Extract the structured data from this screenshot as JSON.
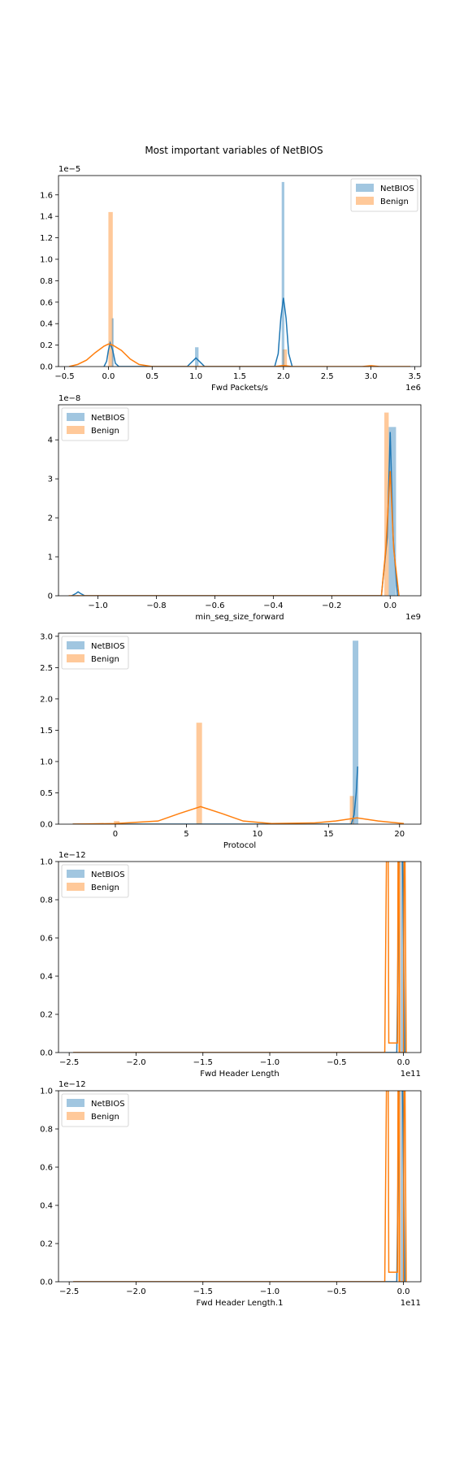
{
  "figure": {
    "suptitle": "Most important variables of NetBIOS"
  },
  "colors": {
    "netbios": "#1f77b4",
    "benign": "#ff7f0e",
    "netbios_bar": "#1f77b4",
    "benign_bar": "#ff7f0e"
  },
  "chart_data": [
    {
      "type": "bar",
      "xlabel": "Fwd Packets/s",
      "x_offset_label": "1e6",
      "y_offset_label": "1e−5",
      "xlim": [
        -0.57,
        3.57
      ],
      "ylim": [
        0,
        1.78
      ],
      "xticks": [
        -0.5,
        0.0,
        0.5,
        1.0,
        1.5,
        2.0,
        2.5,
        3.0,
        3.5
      ],
      "xtick_labels": [
        "−0.5",
        "0.0",
        "0.5",
        "1.0",
        "1.5",
        "2.0",
        "2.5",
        "3.0",
        "3.5"
      ],
      "yticks": [
        0,
        0.2,
        0.4,
        0.6,
        0.8,
        1.0,
        1.2,
        1.4,
        1.6
      ],
      "ytick_labels": [
        "0.0",
        "0.2",
        "0.4",
        "0.6",
        "0.8",
        "1.0",
        "1.2",
        "1.4",
        "1.6"
      ],
      "legend": "upper-right",
      "series": [
        {
          "name": "NetBIOS",
          "bars": [
            [
              0.04,
              0.06,
              0.45
            ],
            [
              0.99,
              1.03,
              0.18
            ],
            [
              1.98,
              2.01,
              1.72
            ]
          ],
          "curve": [
            [
              -0.05,
              0
            ],
            [
              -0.02,
              0.05
            ],
            [
              0.0,
              0.15
            ],
            [
              0.02,
              0.22
            ],
            [
              0.05,
              0.15
            ],
            [
              0.08,
              0.03
            ],
            [
              0.12,
              0
            ],
            [
              0.9,
              0
            ],
            [
              0.95,
              0.04
            ],
            [
              1.0,
              0.08
            ],
            [
              1.05,
              0.04
            ],
            [
              1.1,
              0
            ],
            [
              1.9,
              0
            ],
            [
              1.94,
              0.12
            ],
            [
              1.97,
              0.45
            ],
            [
              2.0,
              0.64
            ],
            [
              2.03,
              0.45
            ],
            [
              2.06,
              0.12
            ],
            [
              2.1,
              0
            ]
          ]
        },
        {
          "name": "Benign",
          "bars": [
            [
              0.0,
              0.05,
              1.44
            ],
            [
              1.99,
              2.04,
              0.16
            ],
            [
              2.99,
              3.01,
              0.01
            ]
          ],
          "curve": [
            [
              -0.45,
              0
            ],
            [
              -0.35,
              0.02
            ],
            [
              -0.25,
              0.06
            ],
            [
              -0.15,
              0.13
            ],
            [
              -0.05,
              0.19
            ],
            [
              0.0,
              0.21
            ],
            [
              0.05,
              0.2
            ],
            [
              0.15,
              0.15
            ],
            [
              0.25,
              0.07
            ],
            [
              0.35,
              0.02
            ],
            [
              0.5,
              0
            ],
            [
              1.9,
              0
            ],
            [
              2.0,
              0.01
            ],
            [
              2.1,
              0
            ],
            [
              2.9,
              0
            ],
            [
              3.0,
              0.008
            ],
            [
              3.1,
              0
            ],
            [
              3.45,
              0
            ]
          ]
        }
      ]
    },
    {
      "type": "bar",
      "xlabel": "min_seg_size_forward",
      "x_offset_label": "1e9",
      "y_offset_label": "1e−8",
      "xlim": [
        -1.135,
        0.105
      ],
      "ylim": [
        0,
        4.9
      ],
      "xticks": [
        -1.0,
        -0.8,
        -0.6,
        -0.4,
        -0.2,
        0.0
      ],
      "xtick_labels": [
        "−1.0",
        "−0.8",
        "−0.6",
        "−0.4",
        "−0.2",
        "0.0"
      ],
      "yticks": [
        0,
        1,
        2,
        3,
        4
      ],
      "ytick_labels": [
        "0",
        "1",
        "2",
        "3",
        "4"
      ],
      "legend": "upper-left",
      "series": [
        {
          "name": "NetBIOS",
          "bars": [
            [
              -0.005,
              0.02,
              4.33
            ],
            [
              -1.072,
              -1.066,
              0.02
            ]
          ],
          "curve": [
            [
              -1.09,
              0
            ],
            [
              -1.075,
              0.06
            ],
            [
              -1.068,
              0.1
            ],
            [
              -1.06,
              0.06
            ],
            [
              -1.045,
              0
            ],
            [
              -0.03,
              0
            ],
            [
              -0.01,
              1.5
            ],
            [
              0.0,
              4.2
            ],
            [
              0.01,
              1.5
            ],
            [
              0.025,
              0
            ]
          ]
        },
        {
          "name": "Benign",
          "bars": [
            [
              -0.02,
              -0.005,
              4.7
            ]
          ],
          "curve": [
            [
              -1.1,
              0
            ],
            [
              -0.03,
              0
            ],
            [
              -0.015,
              1.2
            ],
            [
              0.0,
              3.2
            ],
            [
              0.012,
              1.2
            ],
            [
              0.03,
              0
            ]
          ]
        }
      ]
    },
    {
      "type": "bar",
      "xlabel": "Protocol",
      "x_offset_label": "",
      "y_offset_label": "",
      "xlim": [
        -4.0,
        21.5
      ],
      "ylim": [
        0,
        3.05
      ],
      "xticks": [
        0,
        5,
        10,
        15,
        20
      ],
      "xtick_labels": [
        "0",
        "5",
        "10",
        "15",
        "20"
      ],
      "yticks": [
        0,
        0.5,
        1.0,
        1.5,
        2.0,
        2.5,
        3.0
      ],
      "ytick_labels": [
        "0.0",
        "0.5",
        "1.0",
        "1.5",
        "2.0",
        "2.5",
        "3.0"
      ],
      "legend": "upper-left",
      "series": [
        {
          "name": "NetBIOS",
          "bars": [
            [
              16.7,
              17.1,
              2.93
            ]
          ],
          "curve": [
            [
              -3.0,
              0
            ],
            [
              16.6,
              0
            ],
            [
              16.8,
              0.15
            ],
            [
              16.95,
              0.5
            ],
            [
              17.05,
              0.92
            ]
          ]
        },
        {
          "name": "Benign",
          "bars": [
            [
              5.7,
              6.1,
              1.62
            ],
            [
              -0.1,
              0.3,
              0.05
            ],
            [
              16.5,
              16.8,
              0.45
            ]
          ],
          "curve": [
            [
              -3.0,
              0
            ],
            [
              0,
              0.01
            ],
            [
              3,
              0.05
            ],
            [
              4.5,
              0.17
            ],
            [
              6,
              0.28
            ],
            [
              7.5,
              0.17
            ],
            [
              9,
              0.05
            ],
            [
              11,
              0.01
            ],
            [
              14,
              0.02
            ],
            [
              15.5,
              0.05
            ],
            [
              17,
              0.1
            ],
            [
              18.5,
              0.05
            ],
            [
              20.3,
              0.01
            ]
          ]
        }
      ]
    },
    {
      "type": "bar",
      "xlabel": "Fwd Header Length",
      "x_offset_label": "1e11",
      "y_offset_label": "1e−12",
      "xlim": [
        -2.58,
        0.13
      ],
      "ylim": [
        0,
        1.0
      ],
      "xticks": [
        -2.5,
        -2.0,
        -1.5,
        -1.0,
        -0.5,
        0.0
      ],
      "xtick_labels": [
        "−2.5",
        "−2.0",
        "−1.5",
        "−1.0",
        "−0.5",
        "0.0"
      ],
      "yticks": [
        0,
        0.2,
        0.4,
        0.6,
        0.8,
        1.0
      ],
      "ytick_labels": [
        "0.0",
        "0.2",
        "0.4",
        "0.6",
        "0.8",
        "1.0"
      ],
      "legend": "upper-left",
      "series": [
        {
          "name": "NetBIOS",
          "bars": [
            [
              -0.02,
              0.0,
              1.0
            ]
          ],
          "curve": [
            [
              -2.47,
              0
            ],
            [
              -0.05,
              0
            ],
            [
              -0.03,
              1.2
            ],
            [
              -0.01,
              1.2
            ],
            [
              0.01,
              0
            ]
          ]
        },
        {
          "name": "Benign",
          "bars": [
            [
              -0.04,
              -0.02,
              1.0
            ]
          ],
          "curve": [
            [
              -2.47,
              0
            ],
            [
              -0.14,
              0
            ],
            [
              -0.125,
              1.2
            ],
            [
              -0.115,
              1.2
            ],
            [
              -0.11,
              0.05
            ],
            [
              -0.045,
              0.05
            ],
            [
              -0.04,
              1.2
            ],
            [
              -0.035,
              1.2
            ],
            [
              -0.03,
              0
            ],
            [
              0.0,
              0
            ],
            [
              0.005,
              1.2
            ],
            [
              0.01,
              1.2
            ],
            [
              0.02,
              0
            ]
          ]
        }
      ]
    },
    {
      "type": "bar",
      "xlabel": "Fwd Header Length.1",
      "x_offset_label": "1e11",
      "y_offset_label": "1e−12",
      "xlim": [
        -2.58,
        0.13
      ],
      "ylim": [
        0,
        1.0
      ],
      "xticks": [
        -2.5,
        -2.0,
        -1.5,
        -1.0,
        -0.5,
        0.0
      ],
      "xtick_labels": [
        "−2.5",
        "−2.0",
        "−1.5",
        "−1.0",
        "−0.5",
        "0.0"
      ],
      "yticks": [
        0,
        0.2,
        0.4,
        0.6,
        0.8,
        1.0
      ],
      "ytick_labels": [
        "0.0",
        "0.2",
        "0.4",
        "0.6",
        "0.8",
        "1.0"
      ],
      "legend": "upper-left",
      "series": [
        {
          "name": "NetBIOS",
          "bars": [
            [
              -0.02,
              0.0,
              1.0
            ]
          ],
          "curve": [
            [
              -2.47,
              0
            ],
            [
              -0.05,
              0
            ],
            [
              -0.03,
              1.2
            ],
            [
              -0.01,
              1.2
            ],
            [
              0.01,
              0
            ]
          ]
        },
        {
          "name": "Benign",
          "bars": [
            [
              -0.04,
              -0.02,
              1.0
            ]
          ],
          "curve": [
            [
              -2.47,
              0
            ],
            [
              -0.14,
              0
            ],
            [
              -0.125,
              1.2
            ],
            [
              -0.115,
              1.2
            ],
            [
              -0.11,
              0.05
            ],
            [
              -0.045,
              0.05
            ],
            [
              -0.04,
              1.2
            ],
            [
              -0.035,
              1.2
            ],
            [
              -0.03,
              0
            ],
            [
              0.0,
              0
            ],
            [
              0.005,
              1.2
            ],
            [
              0.01,
              1.2
            ],
            [
              0.02,
              0
            ]
          ]
        }
      ]
    }
  ]
}
